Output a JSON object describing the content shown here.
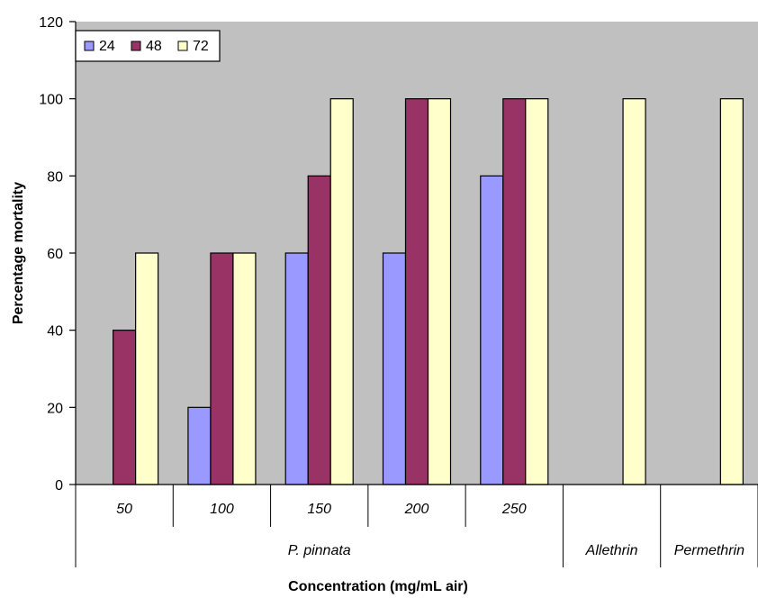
{
  "chart_data": {
    "type": "bar",
    "xlabel": "Concentration (mg/mL air)",
    "ylabel": "Percentage mortality",
    "ylim": [
      0,
      120
    ],
    "yticks": [
      0,
      20,
      40,
      60,
      80,
      100,
      120
    ],
    "grid": false,
    "legend_position": "top-left",
    "categories": [
      "50",
      "100",
      "150",
      "200",
      "250",
      "",
      ""
    ],
    "groups": [
      {
        "label": "P. pinnata",
        "span": 5
      },
      {
        "label": "Allethrin",
        "span": 1
      },
      {
        "label": "Permethrin",
        "span": 1
      }
    ],
    "series": [
      {
        "name": "24",
        "color": "#9999ff",
        "values": [
          0,
          20,
          60,
          60,
          80,
          0,
          0
        ]
      },
      {
        "name": "48",
        "color": "#993366",
        "values": [
          40,
          60,
          80,
          100,
          100,
          0,
          0
        ]
      },
      {
        "name": "72",
        "color": "#ffffcc",
        "values": [
          60,
          60,
          100,
          100,
          100,
          100,
          100
        ]
      }
    ],
    "plot_background": "#c0c0c0"
  }
}
